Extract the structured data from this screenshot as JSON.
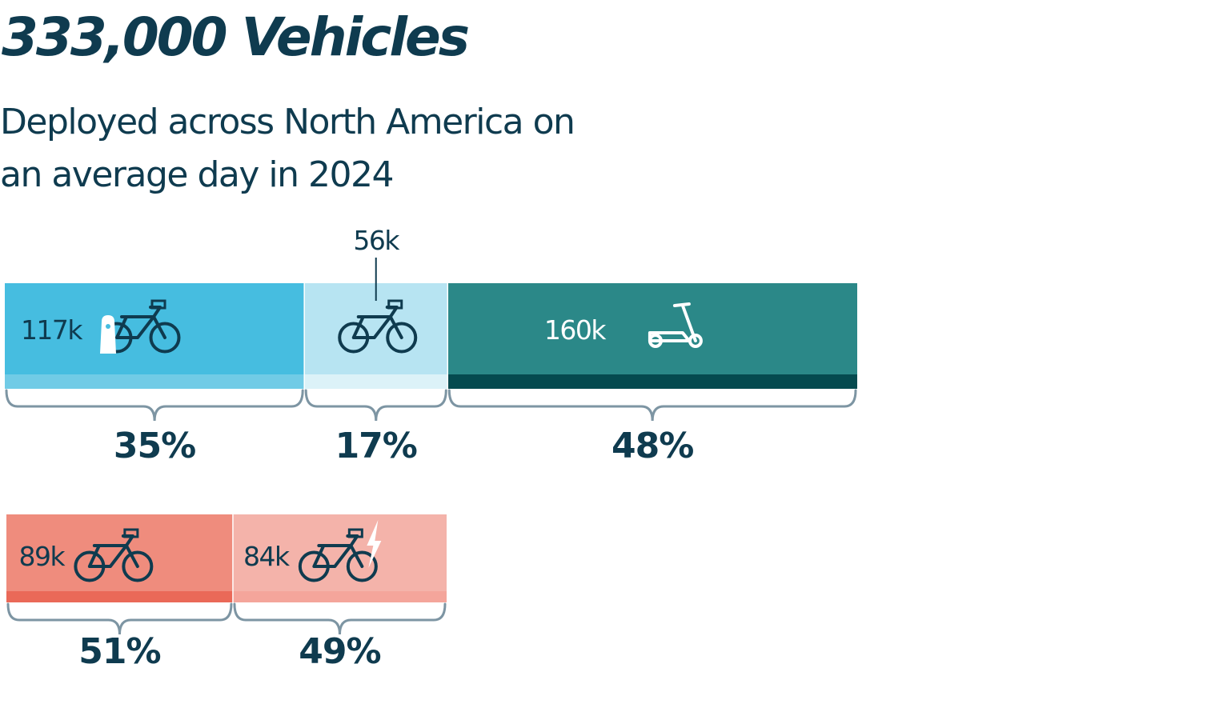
{
  "header": {
    "title": "333,000 Vehicles",
    "subtitle_line1": "Deployed across North America on",
    "subtitle_line2": "an average day in 2024"
  },
  "chart_data": [
    {
      "type": "bar",
      "orientation": "horizontal-stacked",
      "title": "",
      "categories": [
        "Station-based bike",
        "Dockless bike",
        "E-scooter"
      ],
      "values": [
        117,
        56,
        160
      ],
      "unit": "k",
      "value_labels": [
        "117k",
        "56k",
        "160k"
      ],
      "percent_labels": [
        "35%",
        "17%",
        "48%"
      ],
      "percents": [
        35,
        17,
        48
      ],
      "icons": [
        "docked-bike-icon",
        "bike-icon",
        "scooter-icon"
      ],
      "colors": [
        "#46bde0",
        "#b7e4f2",
        "#2b8888"
      ],
      "stripe_colors": [
        "#71cbe6",
        "#dcf2f8",
        "#054a4f"
      ]
    },
    {
      "type": "bar",
      "orientation": "horizontal-stacked",
      "title": "",
      "categories": [
        "Pedal bike",
        "E-bike"
      ],
      "values": [
        89,
        84
      ],
      "unit": "k",
      "value_labels": [
        "89k",
        "84k"
      ],
      "percent_labels": [
        "51%",
        "49%"
      ],
      "percents": [
        51,
        49
      ],
      "icons": [
        "bike-icon",
        "ebike-icon"
      ],
      "colors": [
        "#ef8c7d",
        "#f4b3aa"
      ],
      "stripe_colors": [
        "#ea6958",
        "#f4a59b"
      ]
    }
  ]
}
